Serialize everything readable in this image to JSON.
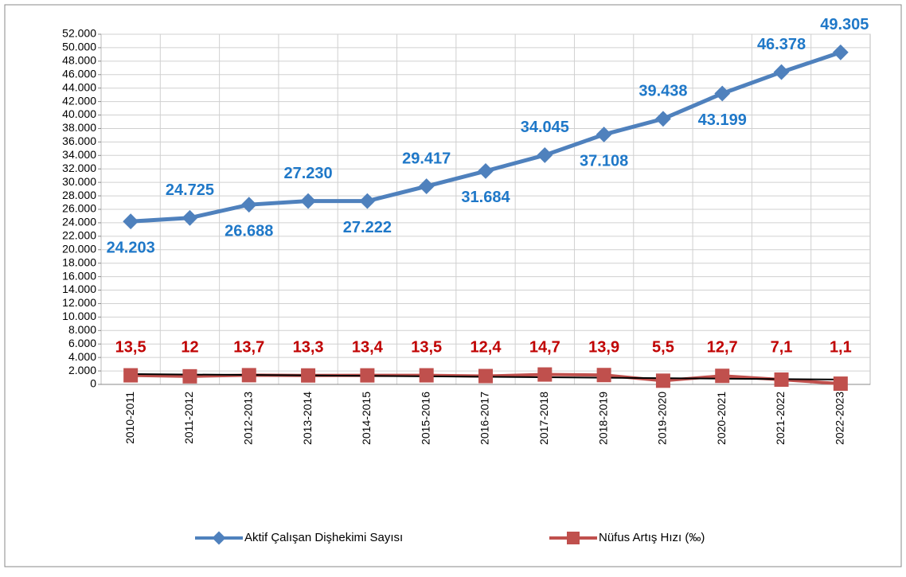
{
  "chart_data": {
    "type": "line",
    "categories": [
      "2010-2011",
      "2011-2012",
      "2012-2013",
      "2013-2014",
      "2014-2015",
      "2015-2016",
      "2016-2017",
      "2017-2018",
      "2018-2019",
      "2019-2020",
      "2020-2021",
      "2021-2022",
      "2022-2023"
    ],
    "series": [
      {
        "name": "Aktif Çalışan Dişhekimi Sayısı",
        "color": "#4f81bd",
        "label_color": "#1f78c8",
        "values": [
          24203,
          24725,
          26688,
          27230,
          27222,
          29417,
          31684,
          34045,
          37108,
          39438,
          43199,
          46378,
          49305
        ],
        "value_labels": [
          "24.203",
          "24.725",
          "26.688",
          "27.230",
          "27.222",
          "29.417",
          "31.684",
          "34.045",
          "37.108",
          "39.438",
          "43.199",
          "46.378",
          "49.305"
        ]
      },
      {
        "name": "Nüfus Artış Hızı (‰)",
        "color": "#c0504d",
        "label_color": "#c00000",
        "axis": "y2",
        "trendline": true,
        "values": [
          13.5,
          12,
          13.7,
          13.3,
          13.4,
          13.5,
          12.4,
          14.7,
          13.9,
          5.5,
          12.7,
          7.1,
          1.1
        ],
        "value_labels": [
          "13,5",
          "12",
          "13,7",
          "13,3",
          "13,4",
          "13,5",
          "12,4",
          "14,7",
          "13,9",
          "5,5",
          "12,7",
          "7,1",
          "1,1"
        ]
      }
    ],
    "ylim": [
      0,
      52000
    ],
    "yticks": [
      0,
      {
        "value": 2000,
        "label": "2.000"
      },
      {
        "value": 4000,
        "label": "4.000"
      },
      {
        "value": 6000,
        "label": "6.000"
      },
      {
        "value": 8000,
        "label": "8.000"
      },
      {
        "value": 10000,
        "label": "10.000"
      },
      {
        "value": 12000,
        "label": "12.000"
      },
      {
        "value": 14000,
        "label": "14.000"
      },
      {
        "value": 16000,
        "label": "16.000"
      },
      {
        "value": 18000,
        "label": "18.000"
      },
      {
        "value": 20000,
        "label": "20.000"
      },
      {
        "value": 22000,
        "label": "22.000"
      },
      {
        "value": 24000,
        "label": "24.000"
      },
      {
        "value": 26000,
        "label": "26.000"
      },
      {
        "value": 28000,
        "label": "28.000"
      },
      {
        "value": 30000,
        "label": "30.000"
      },
      {
        "value": 32000,
        "label": "32.000"
      },
      {
        "value": 34000,
        "label": "34.000"
      },
      {
        "value": 36000,
        "label": "36.000"
      },
      {
        "value": 38000,
        "label": "38.000"
      },
      {
        "value": 40000,
        "label": "40.000"
      },
      {
        "value": 42000,
        "label": "42.000"
      },
      {
        "value": 44000,
        "label": "44.000"
      },
      {
        "value": 46000,
        "label": "46.000"
      },
      {
        "value": 48000,
        "label": "48.000"
      },
      {
        "value": 50000,
        "label": "50.000"
      },
      {
        "value": 52000,
        "label": "52.000"
      }
    ],
    "y2lim": [
      0,
      520
    ],
    "grid": true,
    "legend": "bottom"
  }
}
